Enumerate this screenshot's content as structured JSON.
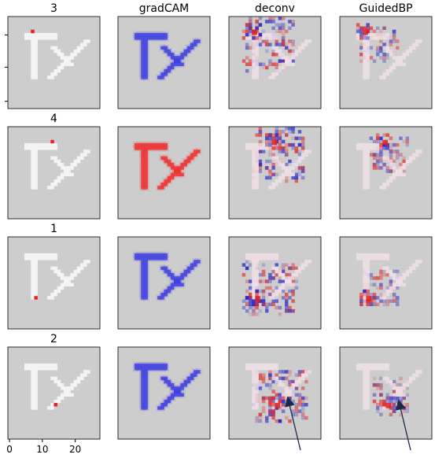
{
  "columns": [
    "",
    "gradCAM",
    "deconv",
    "GuidedBP"
  ],
  "rows": [
    {
      "label": "3",
      "marker": [
        7,
        4
      ],
      "cam": "blue"
    },
    {
      "label": "4",
      "marker": [
        13,
        4
      ],
      "cam": "red"
    },
    {
      "label": "1",
      "marker": [
        8,
        18
      ],
      "cam": "blue"
    },
    {
      "label": "2",
      "marker": [
        14,
        17
      ],
      "cam": "blue"
    }
  ],
  "axis": {
    "xticks": [
      "0",
      "10",
      "20"
    ]
  },
  "colors": {
    "background": "#cdcdcd",
    "letters": "#f4f4f4",
    "marker": "#ee2020",
    "cam_blue": "#4040e0",
    "cam_red": "#ee3030",
    "arrow": "#1a2a4a"
  }
}
